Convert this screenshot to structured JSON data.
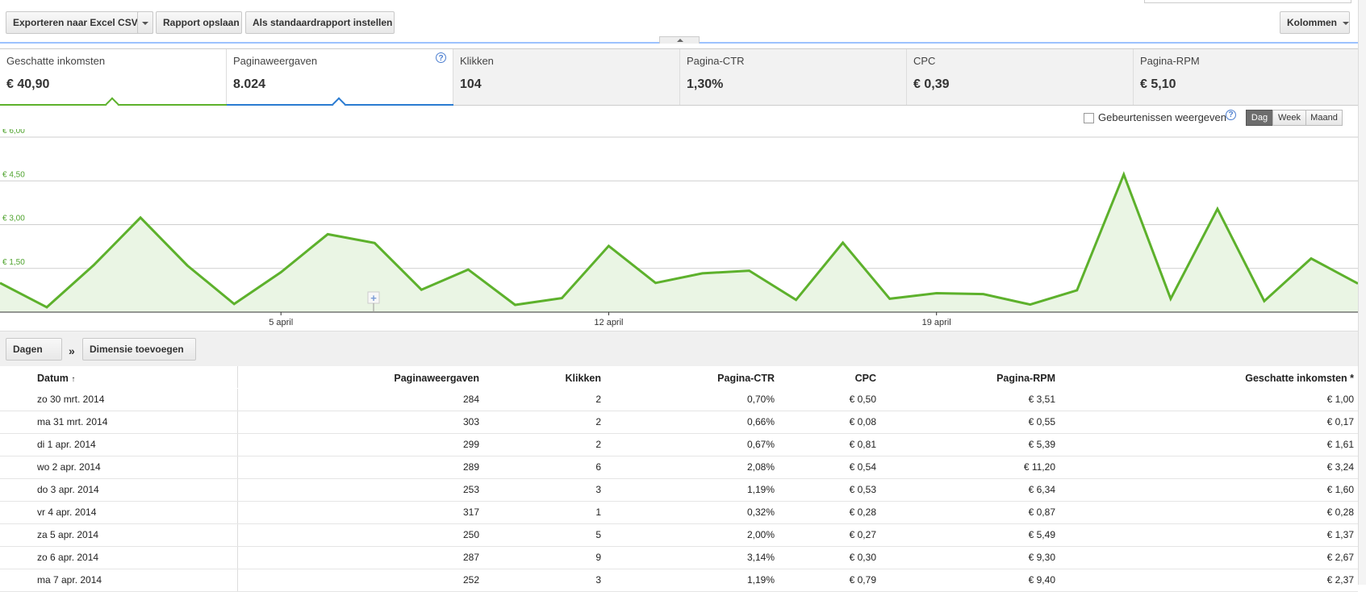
{
  "toolbar": {
    "export_label": "Exporteren naar Excel CSV",
    "save_label": "Rapport opslaan",
    "default_label": "Als standaardrapport instellen",
    "columns_label": "Kolommen"
  },
  "metrics": [
    {
      "name": "Geschatte inkomsten",
      "value": "€ 40,90"
    },
    {
      "name": "Paginaweergaven",
      "value": "8.024"
    },
    {
      "name": "Klikken",
      "value": "104"
    },
    {
      "name": "Pagina-CTR",
      "value": "1,30%"
    },
    {
      "name": "CPC",
      "value": "€ 0,39"
    },
    {
      "name": "Pagina-RPM",
      "value": "€ 5,10"
    }
  ],
  "chart_controls": {
    "events_label": "Gebeurtenissen weergeven",
    "periods": [
      "Dag",
      "Week",
      "Maand"
    ],
    "active_period": "Dag"
  },
  "chart_data": {
    "type": "area",
    "series": [
      {
        "name": "Geschatte inkomsten",
        "color": "#5db12c",
        "values": [
          1.0,
          0.17,
          1.61,
          3.24,
          1.6,
          0.28,
          1.37,
          2.67,
          2.37,
          0.77,
          1.46,
          0.25,
          0.48,
          2.27,
          1.0,
          1.33,
          1.42,
          0.42,
          2.38,
          0.46,
          0.65,
          0.62,
          0.26,
          0.75,
          4.72,
          0.46,
          3.54,
          0.38,
          1.84,
          0.98
        ]
      }
    ],
    "x_labels": [
      "5 april",
      "12 april",
      "19 april"
    ],
    "y_ticks": [
      "€ 1,50",
      "€ 3,00",
      "€ 4,50",
      "€ 6,00"
    ],
    "ylim": [
      0,
      6
    ],
    "grid": true
  },
  "dimensions": {
    "primary_label": "Dagen",
    "separator": "»",
    "add_label": "Dimensie toevoegen"
  },
  "table": {
    "headers": [
      "Datum",
      "Paginaweergaven",
      "Klikken",
      "Pagina-CTR",
      "CPC",
      "Pagina-RPM",
      "Geschatte inkomsten *"
    ],
    "sort_indicator": "↑",
    "rows": [
      [
        "zo 30 mrt. 2014",
        "284",
        "2",
        "0,70%",
        "€ 0,50",
        "€ 3,51",
        "€ 1,00"
      ],
      [
        "ma 31 mrt. 2014",
        "303",
        "2",
        "0,66%",
        "€ 0,08",
        "€ 0,55",
        "€ 0,17"
      ],
      [
        "di 1 apr. 2014",
        "299",
        "2",
        "0,67%",
        "€ 0,81",
        "€ 5,39",
        "€ 1,61"
      ],
      [
        "wo 2 apr. 2014",
        "289",
        "6",
        "2,08%",
        "€ 0,54",
        "€ 11,20",
        "€ 3,24"
      ],
      [
        "do 3 apr. 2014",
        "253",
        "3",
        "1,19%",
        "€ 0,53",
        "€ 6,34",
        "€ 1,60"
      ],
      [
        "vr 4 apr. 2014",
        "317",
        "1",
        "0,32%",
        "€ 0,28",
        "€ 0,87",
        "€ 0,28"
      ],
      [
        "za 5 apr. 2014",
        "250",
        "5",
        "2,00%",
        "€ 0,27",
        "€ 5,49",
        "€ 1,37"
      ],
      [
        "zo 6 apr. 2014",
        "287",
        "9",
        "3,14%",
        "€ 0,30",
        "€ 9,30",
        "€ 2,67"
      ],
      [
        "ma 7 apr. 2014",
        "252",
        "3",
        "1,19%",
        "€ 0,79",
        "€ 9,40",
        "€ 2,37"
      ]
    ]
  }
}
